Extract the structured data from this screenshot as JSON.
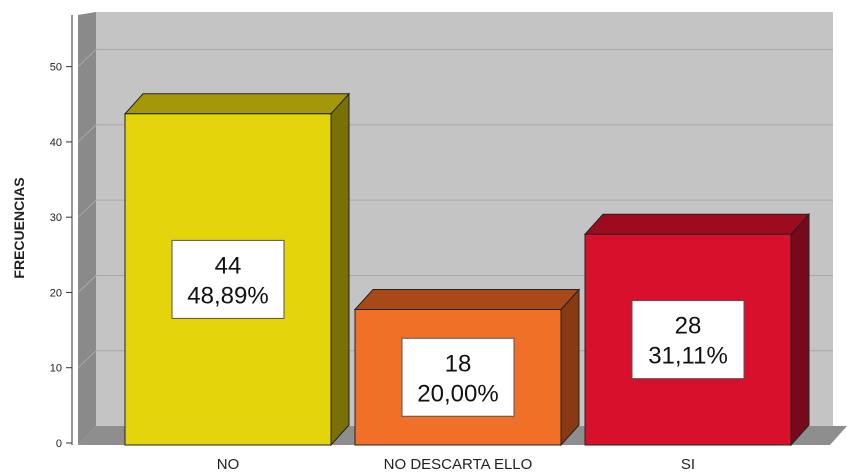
{
  "chart_data": {
    "type": "bar",
    "categories": [
      "NO",
      "NO DESCARTA ELLO",
      "SI"
    ],
    "values": [
      44,
      18,
      28
    ],
    "percent_labels": [
      "48,89%",
      "20,00%",
      "31,11%"
    ],
    "ylabel": "FRECUENCIAS",
    "xlabel": "",
    "ylim": [
      0,
      55
    ],
    "yticks": [
      0,
      10,
      20,
      30,
      40,
      50
    ],
    "grid": true,
    "bar_style": "3d",
    "colors": {
      "fronts": [
        "#e4d40c",
        "#f07028",
        "#d8102c"
      ],
      "tops": [
        "#a4980a",
        "#a84a18",
        "#9c0c1e"
      ],
      "sides": [
        "#7a7008",
        "#8a3a12",
        "#78091a"
      ],
      "plot_bg": "#c4c4c4",
      "wall": "#8a8a8a",
      "floor": "#8e8e8e",
      "gridline": "#a8a8a8"
    }
  }
}
